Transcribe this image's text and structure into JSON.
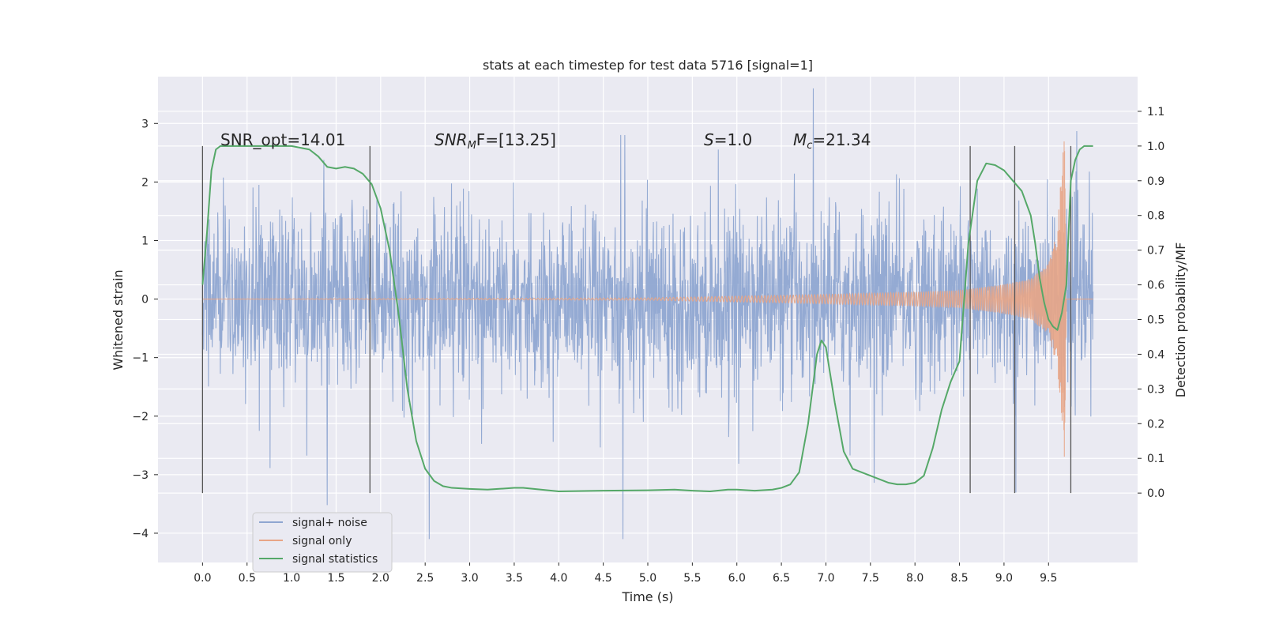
{
  "chart_data": {
    "type": "line",
    "title": "stats at each timestep for test data 5716 [signal=1]",
    "xlabel": "Time (s)",
    "ylabel": "Whitened strain",
    "ylabel_right": "Detection probability/MF",
    "xlim": [
      -0.5,
      10.5
    ],
    "ylim": [
      -4.5,
      3.8
    ],
    "ylim_right": [
      -0.2,
      1.2
    ],
    "x_ticks": [
      "0.0",
      "0.5",
      "1.0",
      "1.5",
      "2.0",
      "2.5",
      "3.0",
      "3.5",
      "4.0",
      "4.5",
      "5.0",
      "5.5",
      "6.0",
      "6.5",
      "7.0",
      "7.5",
      "8.0",
      "8.5",
      "9.0",
      "9.5"
    ],
    "y_ticks": [
      "3",
      "2",
      "1",
      "0",
      "−1",
      "−2",
      "−3",
      "−4"
    ],
    "y_right_ticks": [
      "1.1",
      "1.0",
      "0.9",
      "0.8",
      "0.7",
      "0.6",
      "0.5",
      "0.4",
      "0.3",
      "0.2",
      "0.1",
      "0.0"
    ],
    "annotations": {
      "snr_opt": "SNR_opt=14.01",
      "snr_mf_main": "SNR",
      "snr_mf_sub": "M",
      "snr_mf_rest": "F=[13.25]",
      "s_var": "S",
      "s_rest": "=1.0",
      "mc_var": "M",
      "mc_sub": "c",
      "mc_rest": "=21.34"
    },
    "grid": true,
    "legend_position": "lower-left",
    "series": [
      {
        "name": "signal+ noise",
        "color": "#8fa6d1",
        "description_values": "whitened noise band roughly ±1.5 with spikes to about ±3.5 between t=0 and t=10"
      },
      {
        "name": "signal only",
        "color": "#e8a586",
        "x": [
          0.0,
          5.0,
          6.0,
          7.0,
          8.0,
          8.5,
          9.0,
          9.3,
          9.5,
          9.6,
          9.65,
          9.68,
          9.7,
          10.0
        ],
        "amplitude": [
          0.0,
          0.02,
          0.05,
          0.08,
          0.12,
          0.15,
          0.25,
          0.35,
          0.6,
          1.2,
          2.3,
          2.8,
          0.0,
          0.0
        ]
      },
      {
        "name": "signal statistics",
        "color": "#55a868",
        "axis": "right",
        "x": [
          0.0,
          0.05,
          0.1,
          0.15,
          0.2,
          0.3,
          0.5,
          0.7,
          1.0,
          1.2,
          1.3,
          1.4,
          1.5,
          1.6,
          1.7,
          1.8,
          1.9,
          2.0,
          2.1,
          2.2,
          2.3,
          2.4,
          2.5,
          2.6,
          2.7,
          2.8,
          3.0,
          3.2,
          3.5,
          3.6,
          3.8,
          4.0,
          4.5,
          5.0,
          5.3,
          5.5,
          5.7,
          5.9,
          6.0,
          6.2,
          6.4,
          6.5,
          6.6,
          6.7,
          6.8,
          6.9,
          6.95,
          7.0,
          7.1,
          7.2,
          7.3,
          7.4,
          7.5,
          7.6,
          7.7,
          7.8,
          7.9,
          8.0,
          8.1,
          8.2,
          8.3,
          8.4,
          8.45,
          8.5,
          8.6,
          8.7,
          8.8,
          8.9,
          9.0,
          9.1,
          9.2,
          9.3,
          9.35,
          9.4,
          9.45,
          9.5,
          9.55,
          9.6,
          9.65,
          9.7,
          9.75,
          9.8,
          9.85,
          9.9,
          9.95,
          10.0
        ],
        "values": [
          0.6,
          0.75,
          0.93,
          0.99,
          1.0,
          1.0,
          1.0,
          1.0,
          1.0,
          0.99,
          0.97,
          0.94,
          0.935,
          0.94,
          0.935,
          0.92,
          0.89,
          0.82,
          0.7,
          0.52,
          0.3,
          0.15,
          0.07,
          0.035,
          0.02,
          0.015,
          0.012,
          0.01,
          0.015,
          0.015,
          0.01,
          0.005,
          0.007,
          0.008,
          0.01,
          0.007,
          0.005,
          0.01,
          0.01,
          0.007,
          0.01,
          0.015,
          0.025,
          0.06,
          0.2,
          0.4,
          0.44,
          0.42,
          0.26,
          0.12,
          0.07,
          0.06,
          0.05,
          0.04,
          0.03,
          0.025,
          0.025,
          0.03,
          0.05,
          0.13,
          0.24,
          0.32,
          0.35,
          0.38,
          0.72,
          0.9,
          0.95,
          0.945,
          0.93,
          0.9,
          0.87,
          0.8,
          0.72,
          0.62,
          0.55,
          0.5,
          0.48,
          0.47,
          0.52,
          0.6,
          0.9,
          0.96,
          0.99,
          1.0,
          1.0,
          1.0
        ]
      }
    ],
    "vertical_markers": [
      0.0,
      1.88,
      8.62,
      9.12,
      9.75
    ],
    "x_data_range": [
      0.0,
      10.0
    ]
  }
}
